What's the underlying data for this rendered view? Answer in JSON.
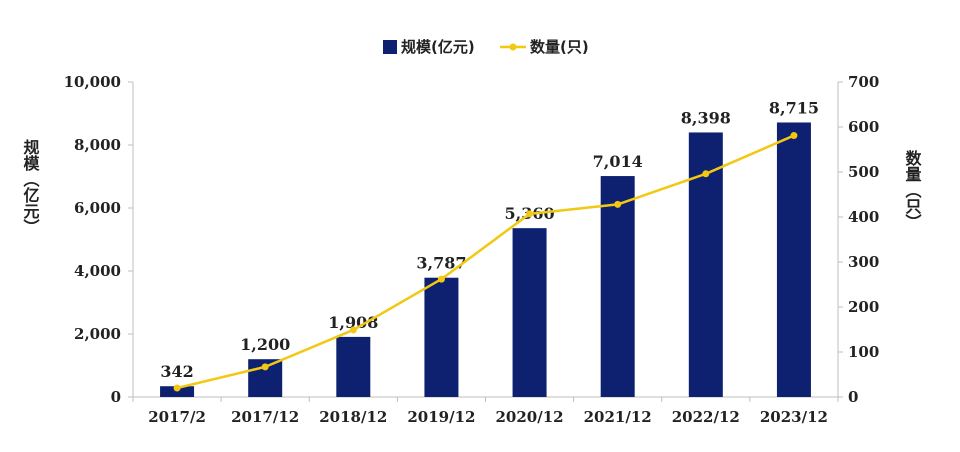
{
  "chart_data": {
    "type": "bar",
    "title": "",
    "categories": [
      "2017/2",
      "2017/12",
      "2018/12",
      "2019/12",
      "2020/12",
      "2021/12",
      "2022/12",
      "2023/12"
    ],
    "series": [
      {
        "name": "规模(亿元)",
        "type": "bar",
        "axis": "left",
        "color": "#0d2170",
        "values": [
          342,
          1200,
          1908,
          3787,
          5360,
          7014,
          8398,
          8715
        ],
        "labels": [
          "342",
          "1,200",
          "1,908",
          "3,787",
          "5,360",
          "7,014",
          "8,398",
          "8,715"
        ]
      },
      {
        "name": "数量(只)",
        "type": "line",
        "axis": "right",
        "color": "#f2c811",
        "values": [
          20,
          67,
          149,
          262,
          407,
          428,
          496,
          581
        ]
      }
    ],
    "y_left": {
      "label": "规模（亿元）",
      "ylim": [
        0,
        10000
      ],
      "ticks": [
        0,
        2000,
        4000,
        6000,
        8000,
        10000
      ],
      "tick_labels": [
        "0",
        "2,000",
        "4,000",
        "6,000",
        "8,000",
        "10,000"
      ]
    },
    "y_right": {
      "label": "数量（只）",
      "ylim": [
        0,
        700
      ],
      "ticks": [
        0,
        100,
        200,
        300,
        400,
        500,
        600,
        700
      ],
      "tick_labels": [
        "0",
        "100",
        "200",
        "300",
        "400",
        "500",
        "600",
        "700"
      ]
    },
    "grid": false,
    "legend_position": "top-center"
  }
}
